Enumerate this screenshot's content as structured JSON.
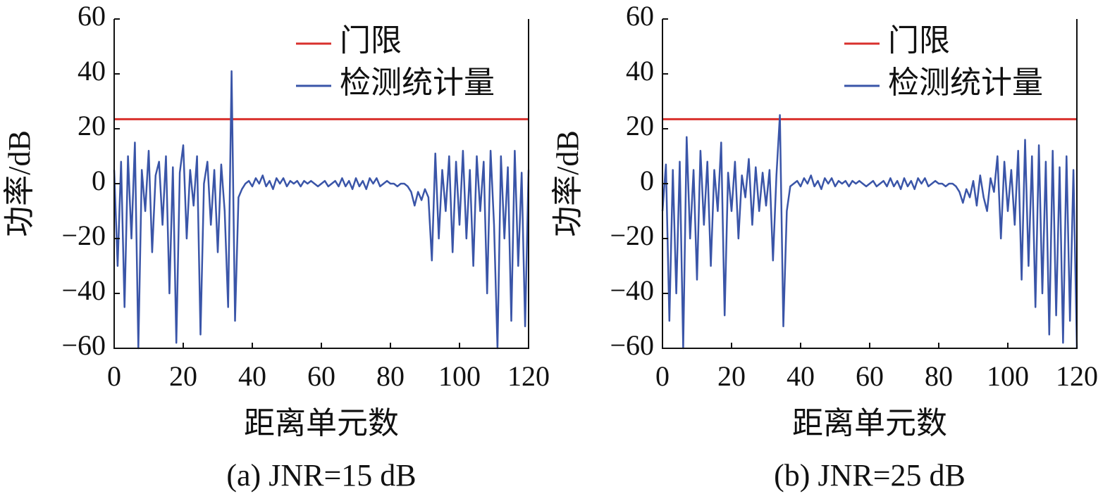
{
  "chart_data": [
    {
      "type": "line",
      "title": "(a) JNR=15 dB",
      "xlabel": "距离单元数",
      "ylabel": "功率/dB",
      "xlim": [
        0,
        120
      ],
      "ylim": [
        -60,
        60
      ],
      "xticks": [
        0,
        20,
        40,
        60,
        80,
        100,
        120
      ],
      "yticks": [
        {
          "value": -60,
          "label": "−60"
        },
        {
          "value": -40,
          "label": "−40"
        },
        {
          "value": -20,
          "label": "−20"
        },
        0,
        20,
        40,
        60
      ],
      "legend": "upper right",
      "series": [
        {
          "name": "门限",
          "color": "#d9302c",
          "x": [
            0,
            120
          ],
          "values": [
            23.5,
            23.5
          ]
        },
        {
          "name": "检测统计量",
          "color": "#3a55a8",
          "x": [
            0,
            1,
            2,
            3,
            4,
            5,
            6,
            7,
            8,
            9,
            10,
            11,
            12,
            13,
            14,
            15,
            16,
            17,
            18,
            19,
            20,
            21,
            22,
            23,
            24,
            25,
            26,
            27,
            28,
            29,
            30,
            31,
            32,
            33,
            34,
            35,
            36,
            37,
            38,
            39,
            40,
            41,
            42,
            43,
            44,
            45,
            46,
            47,
            48,
            49,
            50,
            51,
            52,
            53,
            54,
            55,
            56,
            57,
            58,
            59,
            60,
            61,
            62,
            63,
            64,
            65,
            66,
            67,
            68,
            69,
            70,
            71,
            72,
            73,
            74,
            75,
            76,
            77,
            78,
            79,
            80,
            81,
            82,
            83,
            84,
            85,
            86,
            87,
            88,
            89,
            90,
            91,
            92,
            93,
            94,
            95,
            96,
            97,
            98,
            99,
            100,
            101,
            102,
            103,
            104,
            105,
            106,
            107,
            108,
            109,
            110,
            111,
            112,
            113,
            114,
            115,
            116,
            117,
            118,
            119,
            120
          ],
          "values": [
            5,
            -30,
            8,
            -45,
            10,
            -20,
            15,
            -60,
            5,
            -10,
            12,
            -25,
            3,
            8,
            -15,
            10,
            -40,
            6,
            -58,
            4,
            14,
            -20,
            5,
            -8,
            10,
            -55,
            0,
            8,
            -15,
            5,
            -25,
            7,
            -10,
            -45,
            41,
            -50,
            -5,
            -2,
            0,
            1,
            -1,
            2,
            0,
            3,
            -1,
            1,
            -2,
            2,
            0,
            2,
            -1,
            1,
            0,
            1,
            -1,
            1,
            0,
            1,
            0,
            -1,
            0,
            1,
            -1,
            0,
            1,
            -1,
            2,
            -1,
            1,
            -2,
            2,
            -1,
            1,
            -2,
            2,
            0,
            2,
            -1,
            0,
            1,
            0,
            0,
            -1,
            0,
            0,
            -1,
            -3,
            -8,
            -3,
            -6,
            -2,
            -5,
            -28,
            11,
            -20,
            5,
            -10,
            10,
            -25,
            8,
            -15,
            12,
            -20,
            5,
            -30,
            10,
            -10,
            8,
            -40,
            12,
            -15,
            -60,
            10,
            -20,
            6,
            -50,
            12,
            -30,
            4,
            -52,
            5
          ]
        }
      ]
    },
    {
      "type": "line",
      "title": "(b) JNR=25 dB",
      "xlabel": "距离单元数",
      "ylabel": "功率/dB",
      "xlim": [
        0,
        120
      ],
      "ylim": [
        -60,
        60
      ],
      "xticks": [
        0,
        20,
        40,
        60,
        80,
        100,
        120
      ],
      "yticks": [
        {
          "value": -60,
          "label": "−60"
        },
        {
          "value": -40,
          "label": "−40"
        },
        {
          "value": -20,
          "label": "−20"
        },
        0,
        20,
        40,
        60
      ],
      "legend": "upper right",
      "series": [
        {
          "name": "门限",
          "color": "#d9302c",
          "x": [
            0,
            120
          ],
          "values": [
            23.5,
            23.5
          ]
        },
        {
          "name": "检测统计量",
          "color": "#3a55a8",
          "x": [
            0,
            1,
            2,
            3,
            4,
            5,
            6,
            7,
            8,
            9,
            10,
            11,
            12,
            13,
            14,
            15,
            16,
            17,
            18,
            19,
            20,
            21,
            22,
            23,
            24,
            25,
            26,
            27,
            28,
            29,
            30,
            31,
            32,
            33,
            34,
            35,
            36,
            37,
            38,
            39,
            40,
            41,
            42,
            43,
            44,
            45,
            46,
            47,
            48,
            49,
            50,
            51,
            52,
            53,
            54,
            55,
            56,
            57,
            58,
            59,
            60,
            61,
            62,
            63,
            64,
            65,
            66,
            67,
            68,
            69,
            70,
            71,
            72,
            73,
            74,
            75,
            76,
            77,
            78,
            79,
            80,
            81,
            82,
            83,
            84,
            85,
            86,
            87,
            88,
            89,
            90,
            91,
            92,
            93,
            94,
            95,
            96,
            97,
            98,
            99,
            100,
            101,
            102,
            103,
            104,
            105,
            106,
            107,
            108,
            109,
            110,
            111,
            112,
            113,
            114,
            115,
            116,
            117,
            118,
            119,
            120
          ],
          "values": [
            -10,
            7,
            -50,
            5,
            -40,
            8,
            -60,
            17,
            -20,
            5,
            -35,
            12,
            -15,
            8,
            -30,
            5,
            -10,
            15,
            -48,
            4,
            -10,
            8,
            -20,
            3,
            -5,
            9,
            -15,
            6,
            -10,
            4,
            -8,
            5,
            -28,
            3,
            25,
            -52,
            -10,
            -1,
            0,
            1,
            -1,
            2,
            0,
            3,
            -1,
            1,
            -2,
            2,
            0,
            2,
            -1,
            1,
            0,
            1,
            -1,
            1,
            0,
            1,
            0,
            -1,
            0,
            1,
            -1,
            0,
            1,
            -1,
            2,
            -1,
            1,
            -2,
            2,
            -1,
            1,
            -2,
            2,
            0,
            2,
            -1,
            0,
            1,
            0,
            0,
            -1,
            0,
            0,
            -1,
            -3,
            -7,
            -2,
            -5,
            1,
            -8,
            3,
            -5,
            -10,
            2,
            -3,
            10,
            -20,
            8,
            -10,
            5,
            -15,
            12,
            -35,
            16,
            -30,
            10,
            -45,
            14,
            -40,
            8,
            -55,
            12,
            -48,
            6,
            -58,
            10,
            -50,
            5,
            -60
          ]
        }
      ]
    }
  ]
}
